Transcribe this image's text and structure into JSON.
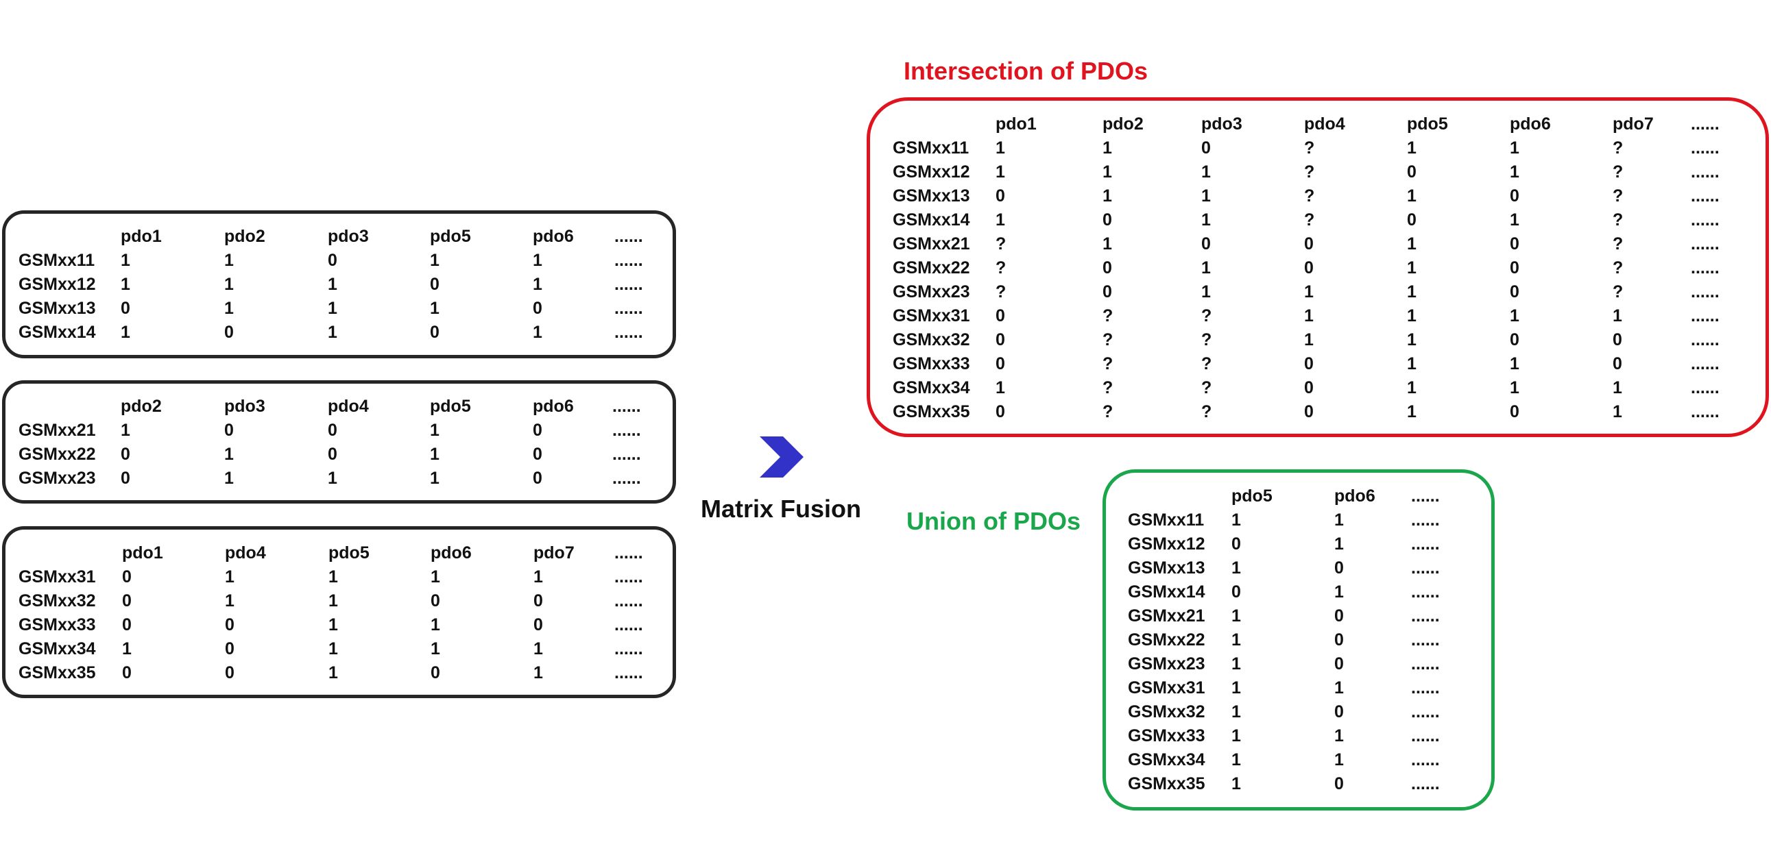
{
  "fusion_label": "Matrix Fusion",
  "intersection_label": "Intersection of PDOs",
  "union_label": "Union of PDOs",
  "arrow_icon": "chevron-right-icon",
  "colors": {
    "intersection": "#e0141e",
    "union": "#1aa64b",
    "input": "#262626",
    "arrow": "#3232c8"
  },
  "input_tables": [
    {
      "columns": [
        "pdo1",
        "pdo2",
        "pdo3",
        "pdo5",
        "pdo6",
        "......"
      ],
      "rows": [
        {
          "id": "GSMxx11",
          "values": [
            "1",
            "1",
            "0",
            "1",
            "1",
            "......"
          ]
        },
        {
          "id": "GSMxx12",
          "values": [
            "1",
            "1",
            "1",
            "0",
            "1",
            "......"
          ]
        },
        {
          "id": "GSMxx13",
          "values": [
            "0",
            "1",
            "1",
            "1",
            "0",
            "......"
          ]
        },
        {
          "id": "GSMxx14",
          "values": [
            "1",
            "0",
            "1",
            "0",
            "1",
            "......"
          ]
        }
      ]
    },
    {
      "columns": [
        "pdo2",
        "pdo3",
        "pdo4",
        "pdo5",
        "pdo6",
        "......"
      ],
      "rows": [
        {
          "id": "GSMxx21",
          "values": [
            "1",
            "0",
            "0",
            "1",
            "0",
            "......"
          ]
        },
        {
          "id": "GSMxx22",
          "values": [
            "0",
            "1",
            "0",
            "1",
            "0",
            "......"
          ]
        },
        {
          "id": "GSMxx23",
          "values": [
            "0",
            "1",
            "1",
            "1",
            "0",
            "......"
          ]
        }
      ]
    },
    {
      "columns": [
        "pdo1",
        "pdo4",
        "pdo5",
        "pdo6",
        "pdo7",
        "......"
      ],
      "rows": [
        {
          "id": "GSMxx31",
          "values": [
            "0",
            "1",
            "1",
            "1",
            "1",
            "......"
          ]
        },
        {
          "id": "GSMxx32",
          "values": [
            "0",
            "1",
            "1",
            "0",
            "0",
            "......"
          ]
        },
        {
          "id": "GSMxx33",
          "values": [
            "0",
            "0",
            "1",
            "1",
            "0",
            "......"
          ]
        },
        {
          "id": "GSMxx34",
          "values": [
            "1",
            "0",
            "1",
            "1",
            "1",
            "......"
          ]
        },
        {
          "id": "GSMxx35",
          "values": [
            "0",
            "0",
            "1",
            "0",
            "1",
            "......"
          ]
        }
      ]
    }
  ],
  "intersection_table": {
    "columns": [
      "pdo1",
      "pdo2",
      "pdo3",
      "pdo4",
      "pdo5",
      "pdo6",
      "pdo7",
      "......"
    ],
    "rows": [
      {
        "id": "GSMxx11",
        "values": [
          "1",
          "1",
          "0",
          "?",
          "1",
          "1",
          "?",
          "......"
        ]
      },
      {
        "id": "GSMxx12",
        "values": [
          "1",
          "1",
          "1",
          "?",
          "0",
          "1",
          "?",
          "......"
        ]
      },
      {
        "id": "GSMxx13",
        "values": [
          "0",
          "1",
          "1",
          "?",
          "1",
          "0",
          "?",
          "......"
        ]
      },
      {
        "id": "GSMxx14",
        "values": [
          "1",
          "0",
          "1",
          "?",
          "0",
          "1",
          "?",
          "......"
        ]
      },
      {
        "id": "GSMxx21",
        "values": [
          "?",
          "1",
          "0",
          "0",
          "1",
          "0",
          "?",
          "......"
        ]
      },
      {
        "id": "GSMxx22",
        "values": [
          "?",
          "0",
          "1",
          "0",
          "1",
          "0",
          "?",
          "......"
        ]
      },
      {
        "id": "GSMxx23",
        "values": [
          "?",
          "0",
          "1",
          "1",
          "1",
          "0",
          "?",
          "......"
        ]
      },
      {
        "id": "GSMxx31",
        "values": [
          "0",
          "?",
          "?",
          "1",
          "1",
          "1",
          "1",
          "......"
        ]
      },
      {
        "id": "GSMxx32",
        "values": [
          "0",
          "?",
          "?",
          "1",
          "1",
          "0",
          "0",
          "......"
        ]
      },
      {
        "id": "GSMxx33",
        "values": [
          "0",
          "?",
          "?",
          "0",
          "1",
          "1",
          "0",
          "......"
        ]
      },
      {
        "id": "GSMxx34",
        "values": [
          "1",
          "?",
          "?",
          "0",
          "1",
          "1",
          "1",
          "......"
        ]
      },
      {
        "id": "GSMxx35",
        "values": [
          "0",
          "?",
          "?",
          "0",
          "1",
          "0",
          "1",
          "......"
        ]
      }
    ]
  },
  "union_table": {
    "columns": [
      "pdo5",
      "pdo6",
      "......"
    ],
    "rows": [
      {
        "id": "GSMxx11",
        "values": [
          "1",
          "1",
          "......"
        ]
      },
      {
        "id": "GSMxx12",
        "values": [
          "0",
          "1",
          "......"
        ]
      },
      {
        "id": "GSMxx13",
        "values": [
          "1",
          "0",
          "......"
        ]
      },
      {
        "id": "GSMxx14",
        "values": [
          "0",
          "1",
          "......"
        ]
      },
      {
        "id": "GSMxx21",
        "values": [
          "1",
          "0",
          "......"
        ]
      },
      {
        "id": "GSMxx22",
        "values": [
          "1",
          "0",
          "......"
        ]
      },
      {
        "id": "GSMxx23",
        "values": [
          "1",
          "0",
          "......"
        ]
      },
      {
        "id": "GSMxx31",
        "values": [
          "1",
          "1",
          "......"
        ]
      },
      {
        "id": "GSMxx32",
        "values": [
          "1",
          "0",
          "......"
        ]
      },
      {
        "id": "GSMxx33",
        "values": [
          "1",
          "1",
          "......"
        ]
      },
      {
        "id": "GSMxx34",
        "values": [
          "1",
          "1",
          "......"
        ]
      },
      {
        "id": "GSMxx35",
        "values": [
          "1",
          "0",
          "......"
        ]
      }
    ]
  }
}
